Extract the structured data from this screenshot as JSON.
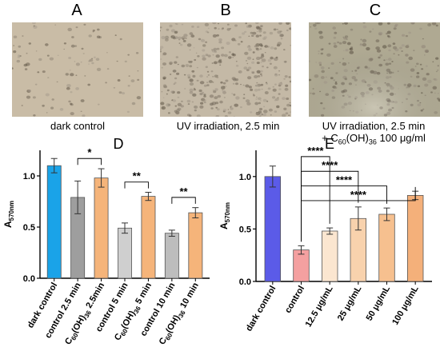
{
  "panels": {
    "A": {
      "letter": "A",
      "caption": "dark control"
    },
    "B": {
      "letter": "B",
      "caption": "UV irradiation, 2.5 min"
    },
    "C": {
      "letter": "C",
      "caption_line1": "UV irradiation, 2.5 min",
      "caption_line2_prefix": "+ C",
      "caption_sub1": "60",
      "caption_mid": "(OH)",
      "caption_sub2": "36",
      "caption_suffix": " 100 μg/ml"
    }
  },
  "colors": {
    "photo_A": "#c9bca6",
    "photo_B": "#c4b9a6",
    "photo_C": "#b8b29a"
  },
  "chart_data": [
    {
      "panel": "D",
      "type": "bar",
      "ylabel": "A",
      "ylabel_sub": "570nm",
      "ylim": [
        0,
        1.25
      ],
      "yticks": [
        "0.0",
        "0.5",
        "1.0"
      ],
      "categories": [
        "dark control",
        "control 2.5 min",
        "C60(OH)36 2.5min",
        "control 5 min",
        "C60(OH)36 5 min",
        "control 10 min",
        "C60(OH)36 10 min"
      ],
      "values": [
        1.1,
        0.79,
        0.98,
        0.49,
        0.8,
        0.44,
        0.64
      ],
      "errors": [
        0.07,
        0.16,
        0.09,
        0.05,
        0.04,
        0.03,
        0.05
      ],
      "colors": [
        "#1aa3e8",
        "#9e9e9e",
        "#f5b47a",
        "#cfcfcf",
        "#f5b47a",
        "#bdbdbd",
        "#f5b47a"
      ],
      "significance": [
        {
          "from": 1,
          "to": 2,
          "label": "*"
        },
        {
          "from": 3,
          "to": 4,
          "label": "**"
        },
        {
          "from": 5,
          "to": 6,
          "label": "**"
        }
      ]
    },
    {
      "panel": "E",
      "type": "bar",
      "ylabel": "A",
      "ylabel_sub": "570nm",
      "ylim": [
        0,
        1.25
      ],
      "yticks": [
        "0.0",
        "0.5",
        "1.0"
      ],
      "categories": [
        "dark control",
        "control",
        "12.5 μg/mL",
        "25 μg/mL",
        "50 μg/mL",
        "100 μg/mL"
      ],
      "values": [
        1.0,
        0.3,
        0.48,
        0.6,
        0.64,
        0.82
      ],
      "errors": [
        0.1,
        0.04,
        0.03,
        0.11,
        0.06,
        0.04
      ],
      "colors": [
        "#5b5be8",
        "#f4a0a0",
        "#fbe6d0",
        "#f8d2ad",
        "#f6c08f",
        "#f4b07a"
      ],
      "significance": [
        {
          "from": 1,
          "to": 5,
          "label": "****"
        },
        {
          "from": 1,
          "to": 4,
          "label": "****"
        },
        {
          "from": 1,
          "to": 3,
          "label": "****"
        },
        {
          "from": 1,
          "to": 2,
          "label": "****"
        }
      ]
    }
  ]
}
